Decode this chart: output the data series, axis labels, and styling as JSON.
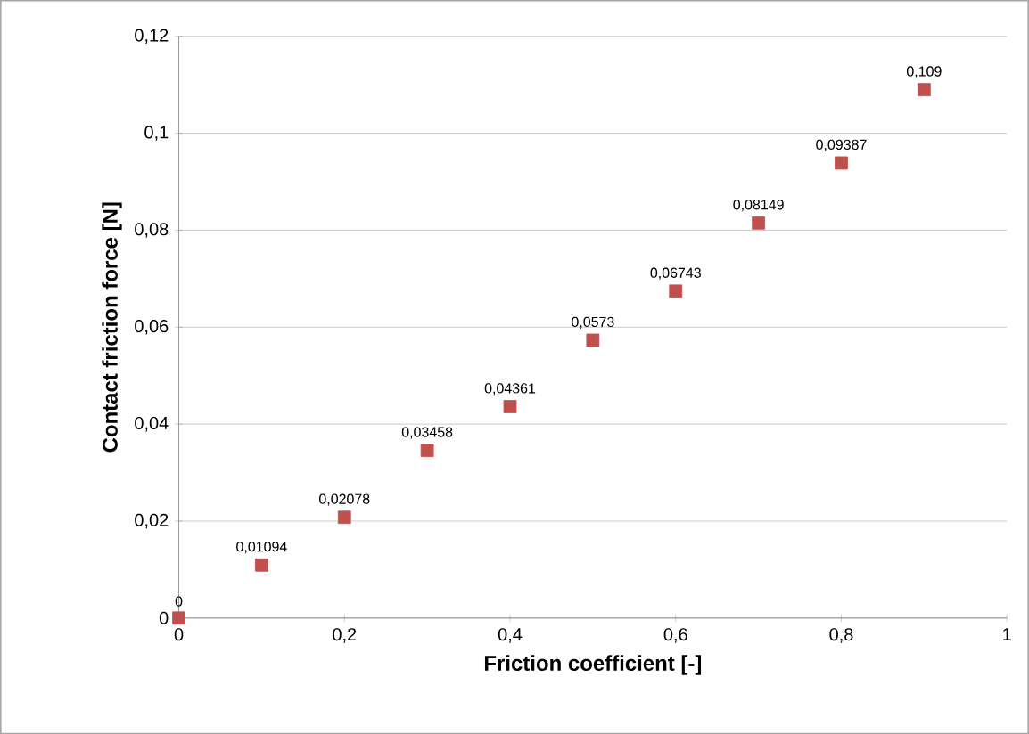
{
  "chart_data": {
    "type": "scatter",
    "xlabel": "Friction coefficient [-]",
    "ylabel": "Contact friction force [N]",
    "x": [
      0,
      0.1,
      0.2,
      0.3,
      0.4,
      0.5,
      0.6,
      0.7,
      0.8,
      0.9
    ],
    "values": [
      0,
      0.01094,
      0.02078,
      0.03458,
      0.04361,
      0.0573,
      0.06743,
      0.08149,
      0.09387,
      0.109
    ],
    "value_labels": [
      "0",
      "0,01094",
      "0,02078",
      "0,03458",
      "0,04361",
      "0,0573",
      "0,06743",
      "0,08149",
      "0,09387",
      "0,109"
    ],
    "color": "#c0504d",
    "marker": "square",
    "xlim": [
      0,
      1
    ],
    "ylim": [
      0,
      0.12
    ],
    "xticks": [
      0,
      {
        "value": 0.2,
        "label": "0,2"
      },
      {
        "value": 0.4,
        "label": "0,4"
      },
      {
        "value": 0.6,
        "label": "0,6"
      },
      {
        "value": 0.8,
        "label": "0,8"
      },
      1
    ],
    "yticks": [
      0,
      {
        "value": 0.02,
        "label": "0,02"
      },
      {
        "value": 0.04,
        "label": "0,04"
      },
      {
        "value": 0.06,
        "label": "0,06"
      },
      {
        "value": 0.08,
        "label": "0,08"
      },
      {
        "value": 0.1,
        "label": "0,1"
      },
      {
        "value": 0.12,
        "label": "0,12"
      }
    ],
    "grid": "y"
  }
}
